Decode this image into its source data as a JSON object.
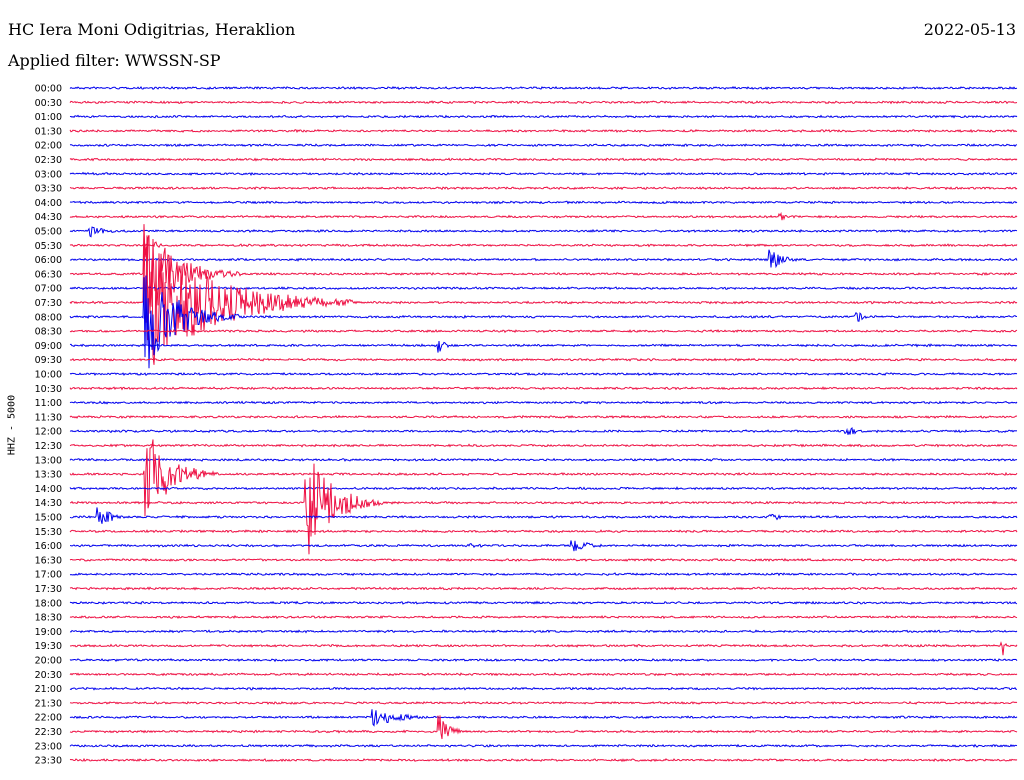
{
  "header": {
    "station": "HC Iera Moni Odigitrias, Heraklion",
    "date": "2022-05-13",
    "filter": "Applied filter: WWSSN-SP"
  },
  "chart_data": {
    "type": "line",
    "title": "HC Iera Moni Odigitrias, Heraklion",
    "date": "2022-05-13",
    "filter": "WWSSN-SP",
    "ylabel": "HHZ - 5000",
    "xlabel": "",
    "colors": {
      "even_rows": "#0000ee",
      "odd_rows": "#ee1144"
    },
    "row_labels": [
      "00:00",
      "00:30",
      "01:00",
      "01:30",
      "02:00",
      "02:30",
      "03:00",
      "03:30",
      "04:00",
      "04:30",
      "05:00",
      "05:30",
      "06:00",
      "06:30",
      "07:00",
      "07:30",
      "08:00",
      "08:30",
      "09:00",
      "09:30",
      "10:00",
      "10:30",
      "11:00",
      "11:30",
      "12:00",
      "12:30",
      "13:00",
      "13:30",
      "14:00",
      "14:30",
      "15:00",
      "15:30",
      "16:00",
      "16:30",
      "17:00",
      "17:30",
      "18:00",
      "18:30",
      "19:00",
      "19:30",
      "20:00",
      "20:30",
      "21:00",
      "21:30",
      "22:00",
      "22:30",
      "23:00",
      "23:30"
    ],
    "x_range_fraction": [
      0,
      1
    ],
    "events": [
      {
        "row": 10,
        "x": 0.02,
        "amplitude": 6,
        "duration": 0.05
      },
      {
        "row": 11,
        "x": 0.09,
        "amplitude": 4,
        "duration": 0.03
      },
      {
        "row": 12,
        "x": 0.74,
        "amplitude": 12,
        "duration": 0.04
      },
      {
        "row": 13,
        "x": 0.08,
        "amplitude": 50,
        "duration": 0.1
      },
      {
        "row": 15,
        "x": 0.08,
        "amplitude": 70,
        "duration": 0.22
      },
      {
        "row": 16,
        "x": 0.08,
        "amplitude": 55,
        "duration": 0.1
      },
      {
        "row": 16,
        "x": 0.83,
        "amplitude": 8,
        "duration": 0.02
      },
      {
        "row": 18,
        "x": 0.39,
        "amplitude": 8,
        "duration": 0.02
      },
      {
        "row": 24,
        "x": 0.82,
        "amplitude": 6,
        "duration": 0.03
      },
      {
        "row": 27,
        "x": 0.08,
        "amplitude": 48,
        "duration": 0.08
      },
      {
        "row": 29,
        "x": 0.25,
        "amplitude": 60,
        "duration": 0.08
      },
      {
        "row": 30,
        "x": 0.03,
        "amplitude": 12,
        "duration": 0.04
      },
      {
        "row": 30,
        "x": 0.74,
        "amplitude": 5,
        "duration": 0.03
      },
      {
        "row": 32,
        "x": 0.42,
        "amplitude": 7,
        "duration": 0.03
      },
      {
        "row": 32,
        "x": 0.53,
        "amplitude": 8,
        "duration": 0.05
      },
      {
        "row": 39,
        "x": 0.985,
        "amplitude": 10,
        "duration": 0.01
      },
      {
        "row": 44,
        "x": 0.32,
        "amplitude": 10,
        "duration": 0.08
      },
      {
        "row": 45,
        "x": 0.39,
        "amplitude": 20,
        "duration": 0.03
      },
      {
        "row": 9,
        "x": 0.75,
        "amplitude": 5,
        "duration": 0.03
      }
    ],
    "grid": false,
    "legend": "none"
  }
}
